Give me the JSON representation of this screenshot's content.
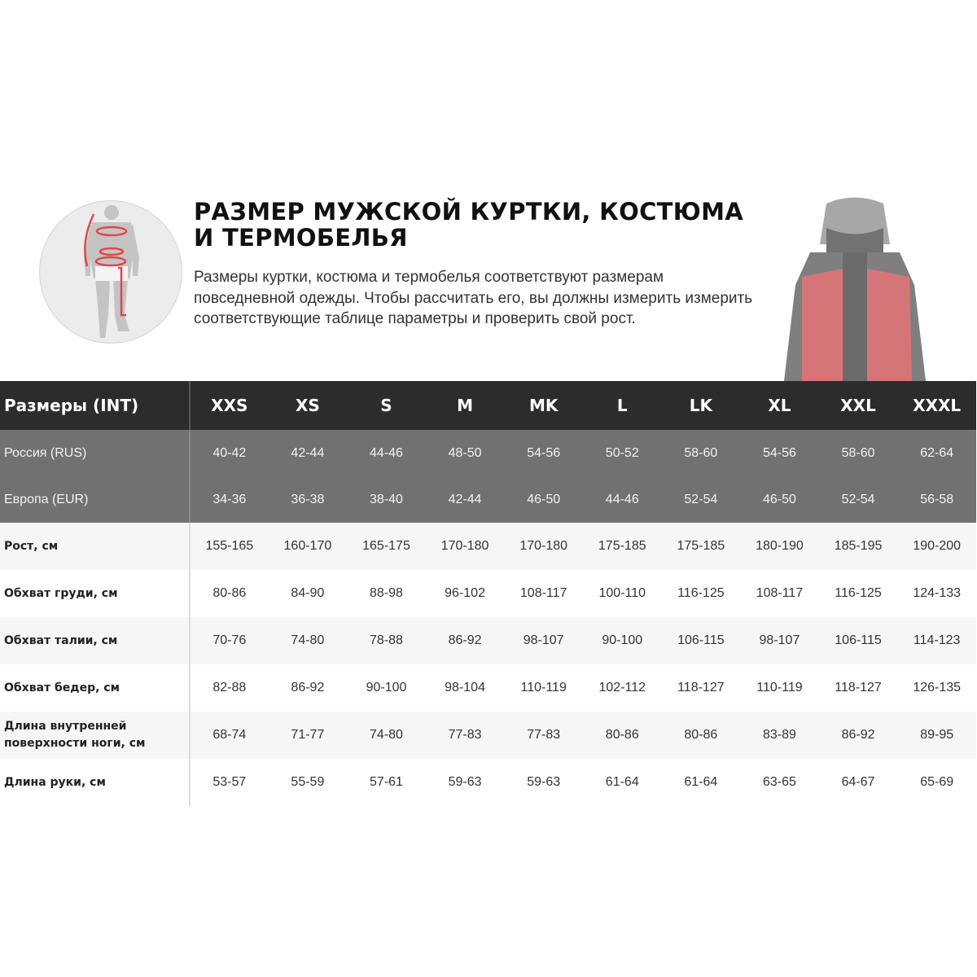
{
  "header": {
    "title": "РАЗМЕР МУЖСКОЙ КУРТКИ, КОСТЮМА И ТЕРМОБЕЛЬЯ",
    "description": "Размеры куртки, костюма и термобелья соответствуют размерам повседневной одежды. Чтобы рассчитать его, вы должны измерить измерить соответствующие таблице параметры и проверить свой рост."
  },
  "colors": {
    "header_bg": "#2c2c2c",
    "region_rows_bg": "#717171",
    "measure_accent": "#e0474c",
    "jacket_red": "#c9484b"
  },
  "table": {
    "corner": "Размеры (INT)",
    "sizes": [
      "XXS",
      "XS",
      "S",
      "M",
      "MK",
      "L",
      "LK",
      "XL",
      "XXL",
      "XXXL"
    ],
    "region_rows": [
      {
        "label": "Россия (RUS)",
        "values": [
          "40-42",
          "42-44",
          "44-46",
          "48-50",
          "54-56",
          "50-52",
          "58-60",
          "54-56",
          "58-60",
          "62-64"
        ]
      },
      {
        "label": "Европа (EUR)",
        "values": [
          "34-36",
          "36-38",
          "38-40",
          "42-44",
          "46-50",
          "44-46",
          "52-54",
          "46-50",
          "52-54",
          "56-58"
        ]
      }
    ],
    "measure_rows": [
      {
        "label": "Рост, см",
        "values": [
          "155-165",
          "160-170",
          "165-175",
          "170-180",
          "170-180",
          "175-185",
          "175-185",
          "180-190",
          "185-195",
          "190-200"
        ]
      },
      {
        "label": "Обхват груди, см",
        "values": [
          "80-86",
          "84-90",
          "88-98",
          "96-102",
          "108-117",
          "100-110",
          "116-125",
          "108-117",
          "116-125",
          "124-133"
        ]
      },
      {
        "label": "Обхват талии, см",
        "values": [
          "70-76",
          "74-80",
          "78-88",
          "86-92",
          "98-107",
          "90-100",
          "106-115",
          "98-107",
          "106-115",
          "114-123"
        ]
      },
      {
        "label": "Обхват бедер, см",
        "values": [
          "82-88",
          "86-92",
          "90-100",
          "98-104",
          "110-119",
          "102-112",
          "118-127",
          "110-119",
          "118-127",
          "126-135"
        ]
      },
      {
        "label": "Длина внутренней поверхности ноги, см",
        "values": [
          "68-74",
          "71-77",
          "74-80",
          "77-83",
          "77-83",
          "80-86",
          "80-86",
          "83-89",
          "86-92",
          "89-95"
        ]
      },
      {
        "label": "Длина руки, см",
        "values": [
          "53-57",
          "55-59",
          "57-61",
          "59-63",
          "59-63",
          "61-64",
          "61-64",
          "63-65",
          "64-67",
          "65-69"
        ]
      }
    ]
  }
}
